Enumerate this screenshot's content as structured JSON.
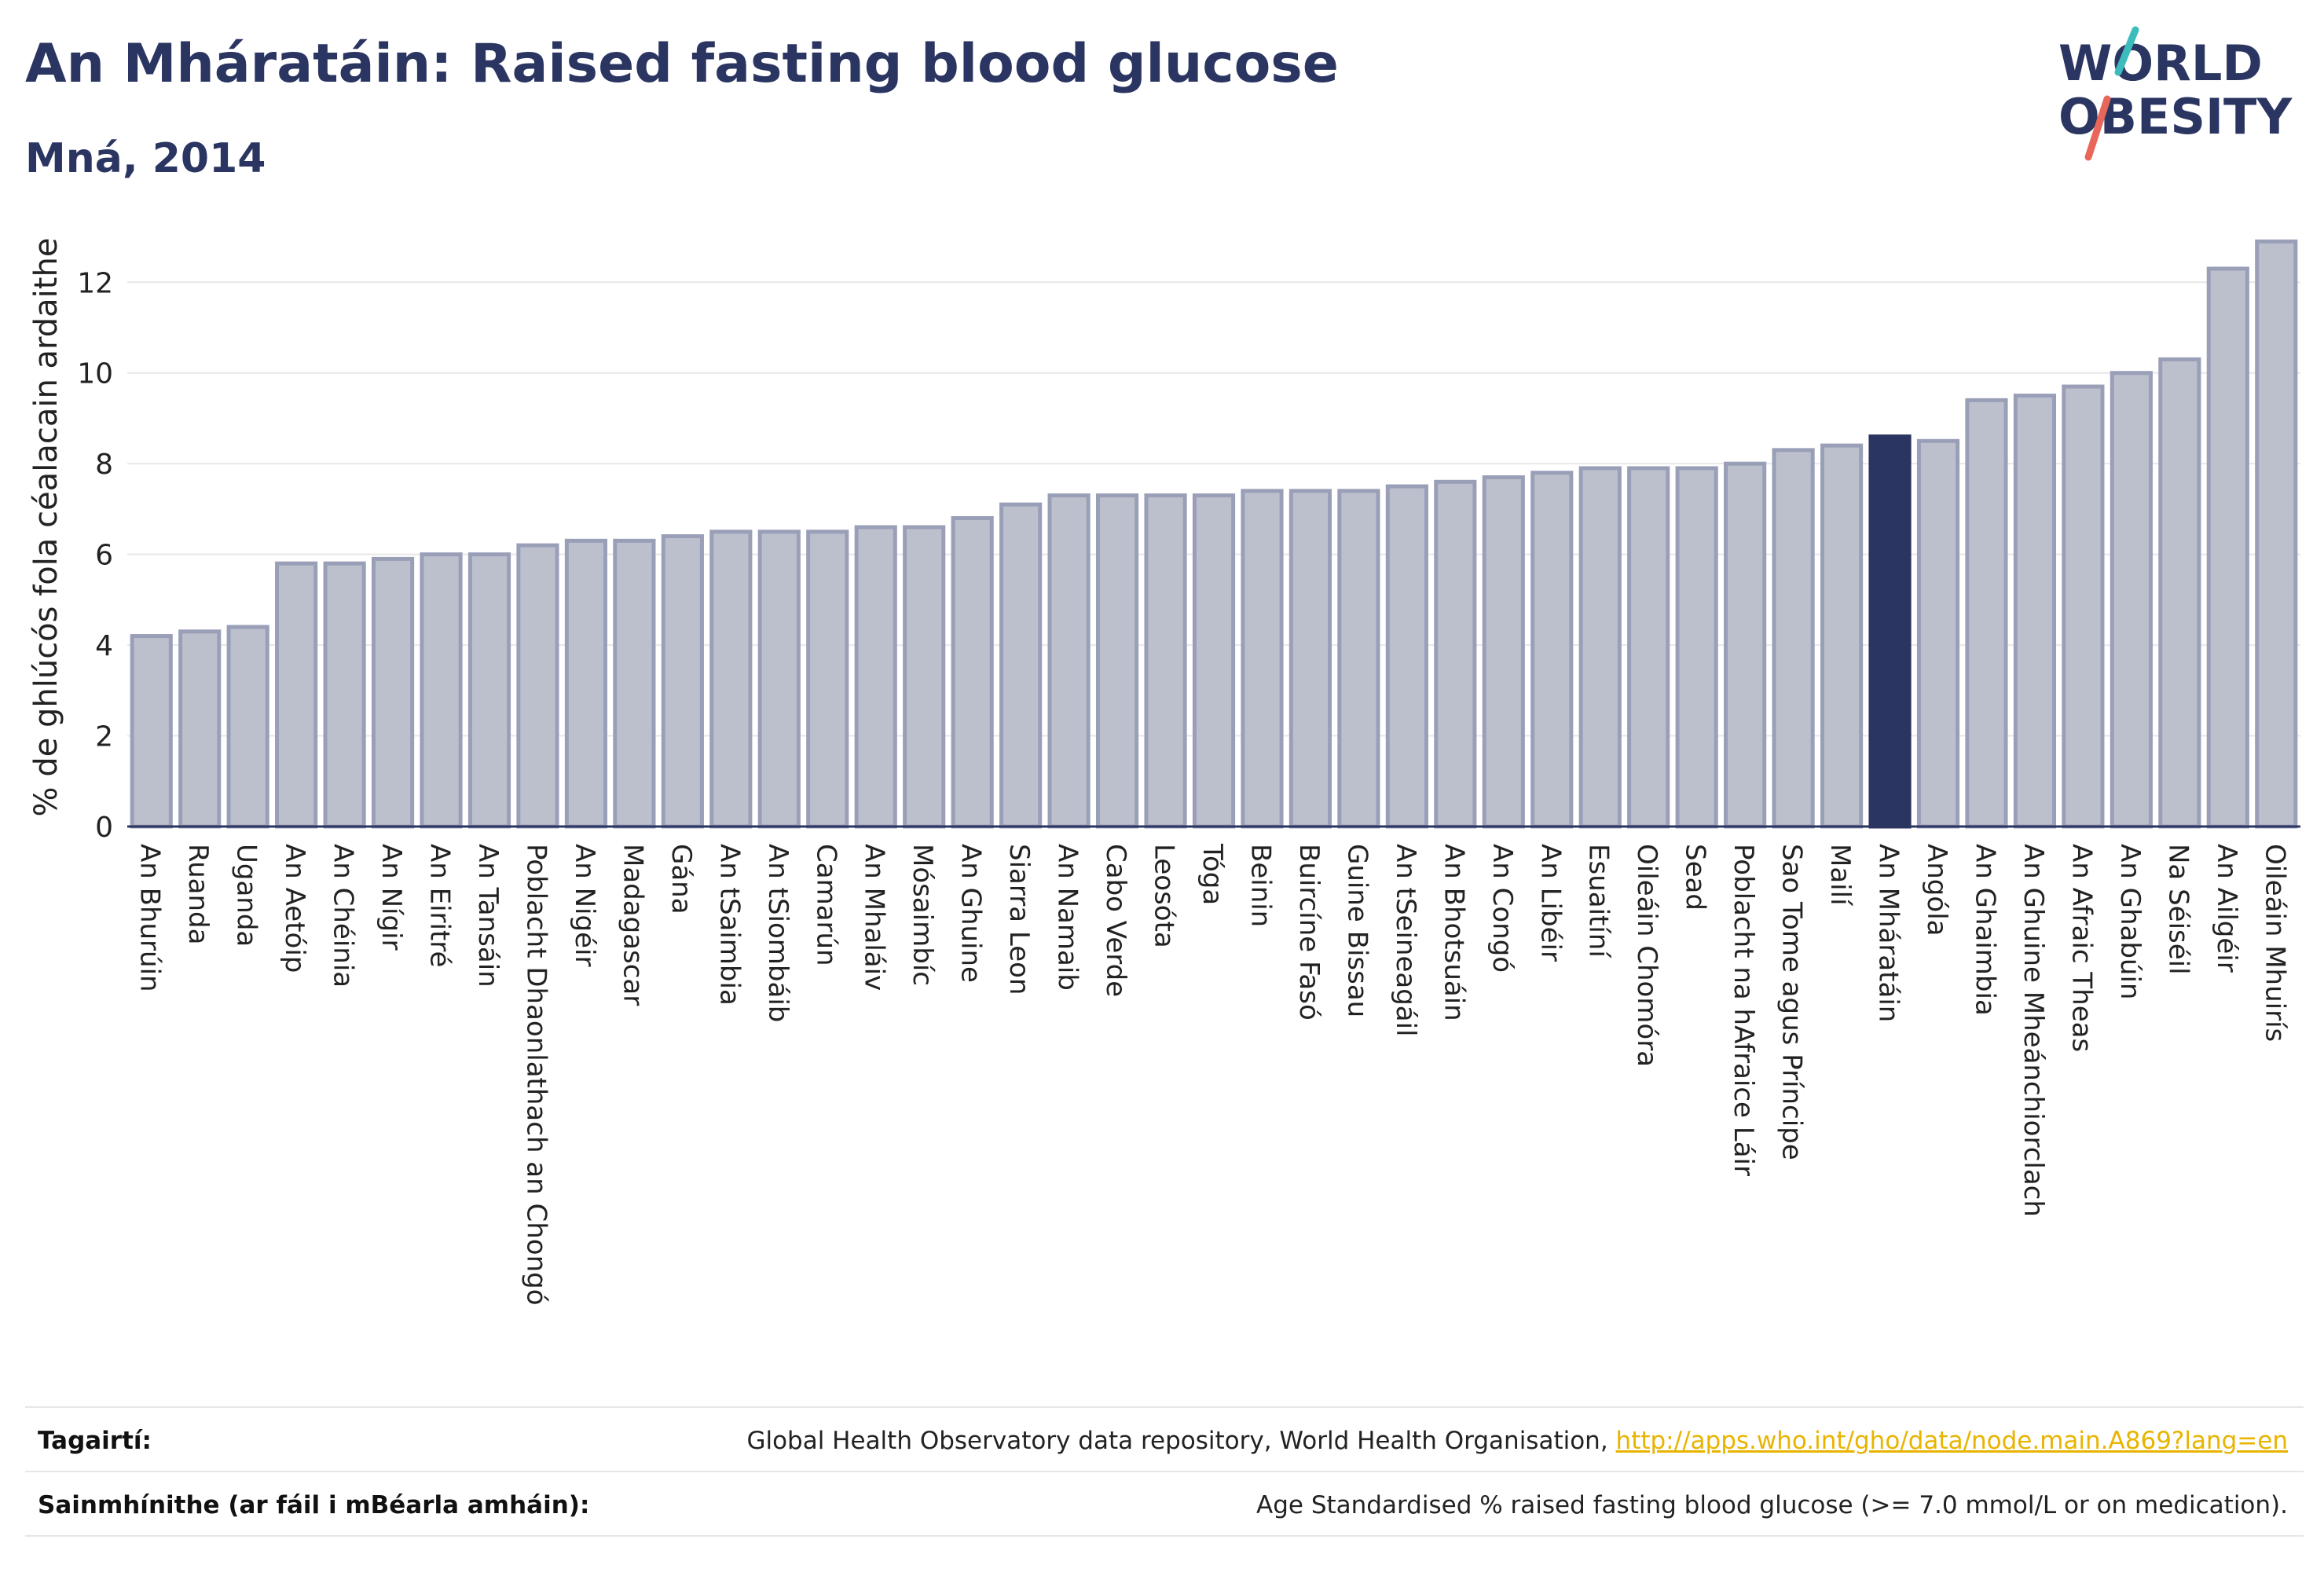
{
  "title": "An Mháratáin: Raised fasting blood glucose",
  "subtitle": "Mná, 2014",
  "logo": {
    "line1": "WORLD",
    "line2": "OBESITY",
    "text_color": "#2b3561",
    "slash_top_color": "#3cbcbc",
    "slash_bottom_color": "#e8675a"
  },
  "colors": {
    "bar_fill": "#bcc0cd",
    "bar_stroke": "#9a9fb8",
    "highlight": "#2b3561",
    "axis_text": "#222222",
    "grid": "#e8e8e8"
  },
  "chart_data": {
    "type": "bar",
    "ylabel": "% de ghlúcós fola céalacain ardaithe",
    "ylim": [
      0,
      13.2
    ],
    "yticks": [
      0,
      2,
      4,
      6,
      8,
      10,
      12
    ],
    "grid": true,
    "highlight_category": "An Mháratáin",
    "categories": [
      "An Bhurúin",
      "Ruanda",
      "Uganda",
      "An Aetóip",
      "An Chéinia",
      "An Nígir",
      "An Eiritré",
      "An Tansáin",
      "Poblacht Dhaonlathach an Chongó",
      "An Nigéir",
      "Madagascar",
      "Gána",
      "An tSaimbia",
      "An tSiombáib",
      "Camarún",
      "An Mhaláiv",
      "Mósaimbíc",
      "An Ghuine",
      "Siarra Leon",
      "An Namaib",
      "Cabo Verde",
      "Leosóta",
      "Tóga",
      "Beinin",
      "Buircíne Fasó",
      "Guine Bissau",
      "An tSeineagáil",
      "An Bhotsuáin",
      "An Congó",
      "An Libéir",
      "Esuaitíní",
      "Oileáin Chomóra",
      "Sead",
      "Poblacht na hAfraice Láir",
      "Sao Tome agus Príncipe",
      "Mailí",
      "An Mháratáin",
      "Angóla",
      "An Ghaimbia",
      "An Ghuine Mheánchiorclach",
      "An Afraic Theas",
      "An Ghabúin",
      "Na Séiséil",
      "An Ailgéir",
      "Oileáin Mhuirís"
    ],
    "values": [
      4.2,
      4.3,
      4.4,
      5.8,
      5.8,
      5.9,
      6.0,
      6.0,
      6.2,
      6.3,
      6.3,
      6.4,
      6.5,
      6.5,
      6.5,
      6.6,
      6.6,
      6.8,
      7.1,
      7.3,
      7.3,
      7.3,
      7.3,
      7.4,
      7.4,
      7.4,
      7.5,
      7.6,
      7.7,
      7.8,
      7.9,
      7.9,
      7.9,
      8.0,
      8.3,
      8.4,
      8.6,
      8.5,
      9.4,
      9.5,
      9.7,
      10.0,
      10.3,
      12.3,
      12.9
    ]
  },
  "footer": {
    "references_label": "Tagairtí:",
    "references_text": "Global Health Observatory data repository, World Health Organisation,",
    "references_link": "http://apps.who.int/gho/data/node.main.A869?lang=en",
    "definitions_label": "Sainmhínithe (ar fáil i mBéarla amháin):",
    "definitions_text": "Age Standardised % raised fasting blood glucose (>= 7.0 mmol/L or on medication)."
  }
}
